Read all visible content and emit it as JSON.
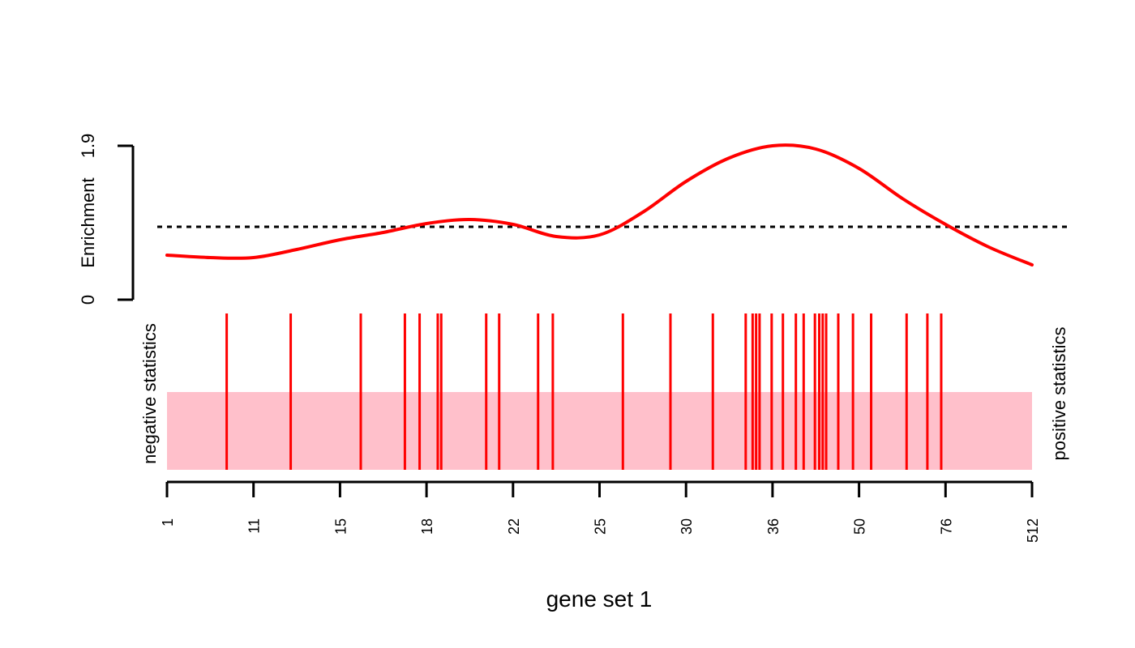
{
  "chart_data": {
    "type": "barcode",
    "xlabel": "gene set 1",
    "x_tick_labels": [
      "1",
      "11",
      "15",
      "18",
      "22",
      "25",
      "30",
      "36",
      "50",
      "76",
      "512"
    ],
    "x_range_rank": [
      0,
      1
    ],
    "enrichment_axis": {
      "label": "Enrichment",
      "tick_labels": [
        "0",
        "1.9"
      ],
      "range": [
        0,
        1.9
      ],
      "reference_line": 0.9
    },
    "side_labels": {
      "left": "negative statistics",
      "right": "positive statistics"
    },
    "enrichment_curve": {
      "x": [
        0.0,
        0.05,
        0.1,
        0.15,
        0.2,
        0.25,
        0.3,
        0.35,
        0.4,
        0.45,
        0.5,
        0.55,
        0.6,
        0.65,
        0.7,
        0.75,
        0.8,
        0.85,
        0.9,
        0.95,
        1.0
      ],
      "y": [
        0.55,
        0.52,
        0.52,
        0.62,
        0.74,
        0.83,
        0.94,
        0.99,
        0.93,
        0.78,
        0.8,
        1.08,
        1.46,
        1.75,
        1.9,
        1.86,
        1.62,
        1.25,
        0.93,
        0.65,
        0.43
      ]
    },
    "gene_positions": [
      0.069,
      0.143,
      0.224,
      0.275,
      0.292,
      0.313,
      0.317,
      0.369,
      0.384,
      0.429,
      0.446,
      0.527,
      0.582,
      0.631,
      0.669,
      0.677,
      0.681,
      0.685,
      0.699,
      0.712,
      0.727,
      0.736,
      0.749,
      0.754,
      0.758,
      0.762,
      0.776,
      0.793,
      0.814,
      0.855,
      0.879,
      0.895
    ],
    "colors": {
      "barcode": "#ff0000",
      "curve": "#ff0000",
      "band": "#ffc0cb",
      "reference_line": "#000000"
    }
  }
}
